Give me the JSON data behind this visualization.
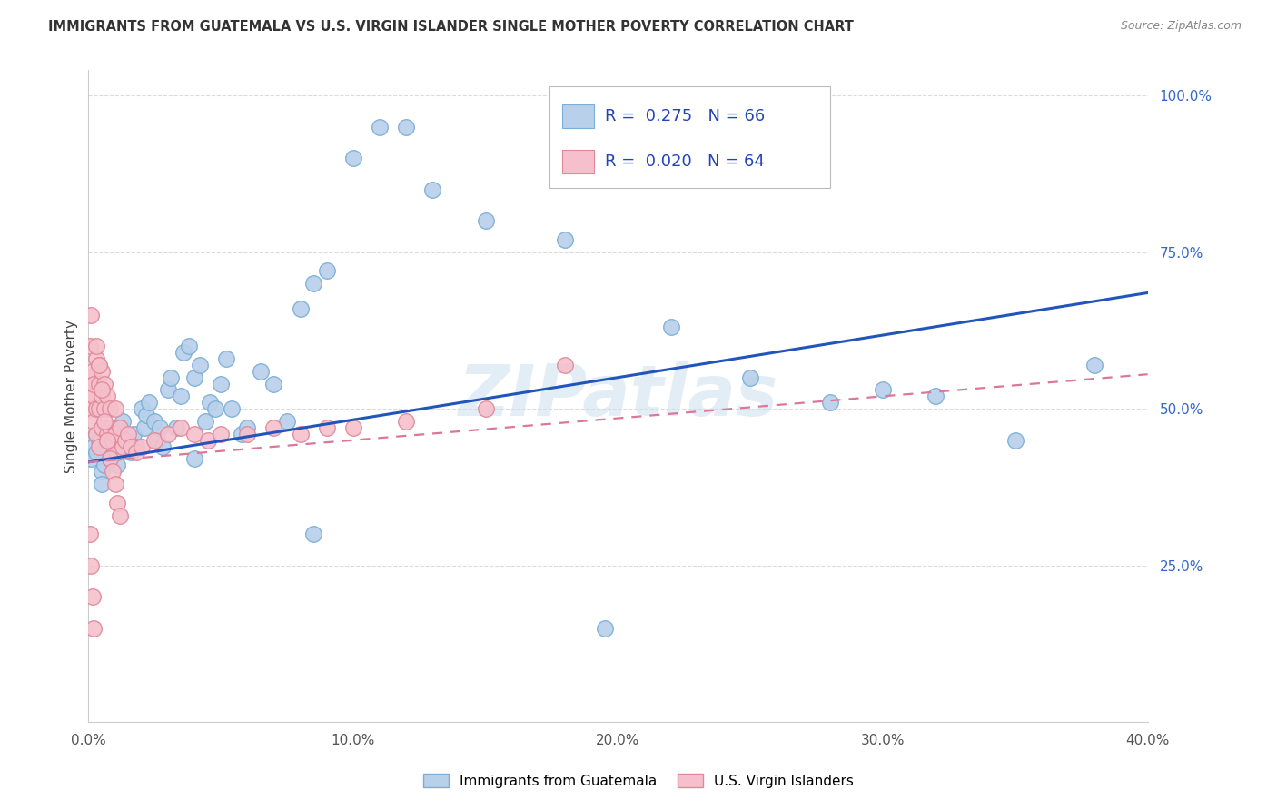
{
  "title": "IMMIGRANTS FROM GUATEMALA VS U.S. VIRGIN ISLANDER SINGLE MOTHER POVERTY CORRELATION CHART",
  "source": "Source: ZipAtlas.com",
  "ylabel": "Single Mother Poverty",
  "watermark": "ZIPatlas",
  "blue_R": "0.275",
  "blue_N": "66",
  "pink_R": "0.020",
  "pink_N": "64",
  "blue_fill": "#b8d0ea",
  "blue_edge": "#7aaed6",
  "blue_line": "#2255bb",
  "pink_fill": "#f5c0cc",
  "pink_edge": "#e08898",
  "pink_line": "#dd7799",
  "legend_blue_label": "Immigrants from Guatemala",
  "legend_pink_label": "U.S. Virgin Islanders",
  "blue_x": [
    0.001,
    0.002,
    0.003,
    0.003,
    0.004,
    0.005,
    0.005,
    0.006,
    0.007,
    0.008,
    0.009,
    0.01,
    0.011,
    0.012,
    0.013,
    0.014,
    0.015,
    0.016,
    0.017,
    0.018,
    0.02,
    0.021,
    0.022,
    0.023,
    0.025,
    0.026,
    0.027,
    0.028,
    0.03,
    0.031,
    0.033,
    0.035,
    0.036,
    0.038,
    0.04,
    0.042,
    0.044,
    0.046,
    0.048,
    0.05,
    0.052,
    0.054,
    0.058,
    0.06,
    0.065,
    0.07,
    0.075,
    0.08,
    0.085,
    0.09,
    0.1,
    0.11,
    0.12,
    0.13,
    0.15,
    0.18,
    0.22,
    0.25,
    0.28,
    0.3,
    0.32,
    0.35,
    0.38,
    0.195,
    0.085,
    0.04
  ],
  "blue_y": [
    0.42,
    0.44,
    0.43,
    0.46,
    0.45,
    0.4,
    0.38,
    0.41,
    0.44,
    0.42,
    0.46,
    0.43,
    0.41,
    0.47,
    0.48,
    0.45,
    0.44,
    0.43,
    0.46,
    0.44,
    0.5,
    0.47,
    0.49,
    0.51,
    0.48,
    0.45,
    0.47,
    0.44,
    0.53,
    0.55,
    0.47,
    0.52,
    0.59,
    0.6,
    0.55,
    0.57,
    0.48,
    0.51,
    0.5,
    0.54,
    0.58,
    0.5,
    0.46,
    0.47,
    0.56,
    0.54,
    0.48,
    0.66,
    0.7,
    0.72,
    0.9,
    0.95,
    0.95,
    0.85,
    0.8,
    0.77,
    0.63,
    0.55,
    0.51,
    0.53,
    0.52,
    0.45,
    0.57,
    0.15,
    0.3,
    0.42
  ],
  "pink_x": [
    0.0004,
    0.0006,
    0.001,
    0.001,
    0.001,
    0.0015,
    0.002,
    0.002,
    0.002,
    0.003,
    0.003,
    0.003,
    0.004,
    0.004,
    0.004,
    0.004,
    0.005,
    0.005,
    0.005,
    0.006,
    0.006,
    0.007,
    0.007,
    0.008,
    0.008,
    0.009,
    0.01,
    0.01,
    0.011,
    0.012,
    0.013,
    0.014,
    0.015,
    0.016,
    0.018,
    0.02,
    0.025,
    0.03,
    0.035,
    0.04,
    0.045,
    0.05,
    0.06,
    0.07,
    0.08,
    0.09,
    0.1,
    0.12,
    0.15,
    0.18,
    0.0005,
    0.001,
    0.0015,
    0.002,
    0.003,
    0.004,
    0.005,
    0.006,
    0.007,
    0.008,
    0.009,
    0.01,
    0.011,
    0.012
  ],
  "pink_y": [
    0.6,
    0.55,
    0.52,
    0.5,
    0.65,
    0.56,
    0.52,
    0.48,
    0.54,
    0.5,
    0.46,
    0.58,
    0.54,
    0.5,
    0.44,
    0.57,
    0.56,
    0.52,
    0.47,
    0.54,
    0.5,
    0.52,
    0.46,
    0.5,
    0.47,
    0.45,
    0.5,
    0.46,
    0.43,
    0.47,
    0.44,
    0.45,
    0.46,
    0.44,
    0.43,
    0.44,
    0.45,
    0.46,
    0.47,
    0.46,
    0.45,
    0.46,
    0.46,
    0.47,
    0.46,
    0.47,
    0.47,
    0.48,
    0.5,
    0.57,
    0.3,
    0.25,
    0.2,
    0.15,
    0.6,
    0.57,
    0.53,
    0.48,
    0.45,
    0.42,
    0.4,
    0.38,
    0.35,
    0.33
  ],
  "blue_line_x0": 0.0,
  "blue_line_x1": 0.4,
  "blue_line_y0": 0.415,
  "blue_line_y1": 0.685,
  "pink_line_x0": 0.0,
  "pink_line_x1": 0.4,
  "pink_line_y0": 0.415,
  "pink_line_y1": 0.555,
  "xlim": [
    0,
    0.4
  ],
  "ylim": [
    0,
    1.04
  ],
  "yticks": [
    0.25,
    0.5,
    0.75,
    1.0
  ],
  "xticks": [
    0.0,
    0.1,
    0.2,
    0.3,
    0.4
  ]
}
